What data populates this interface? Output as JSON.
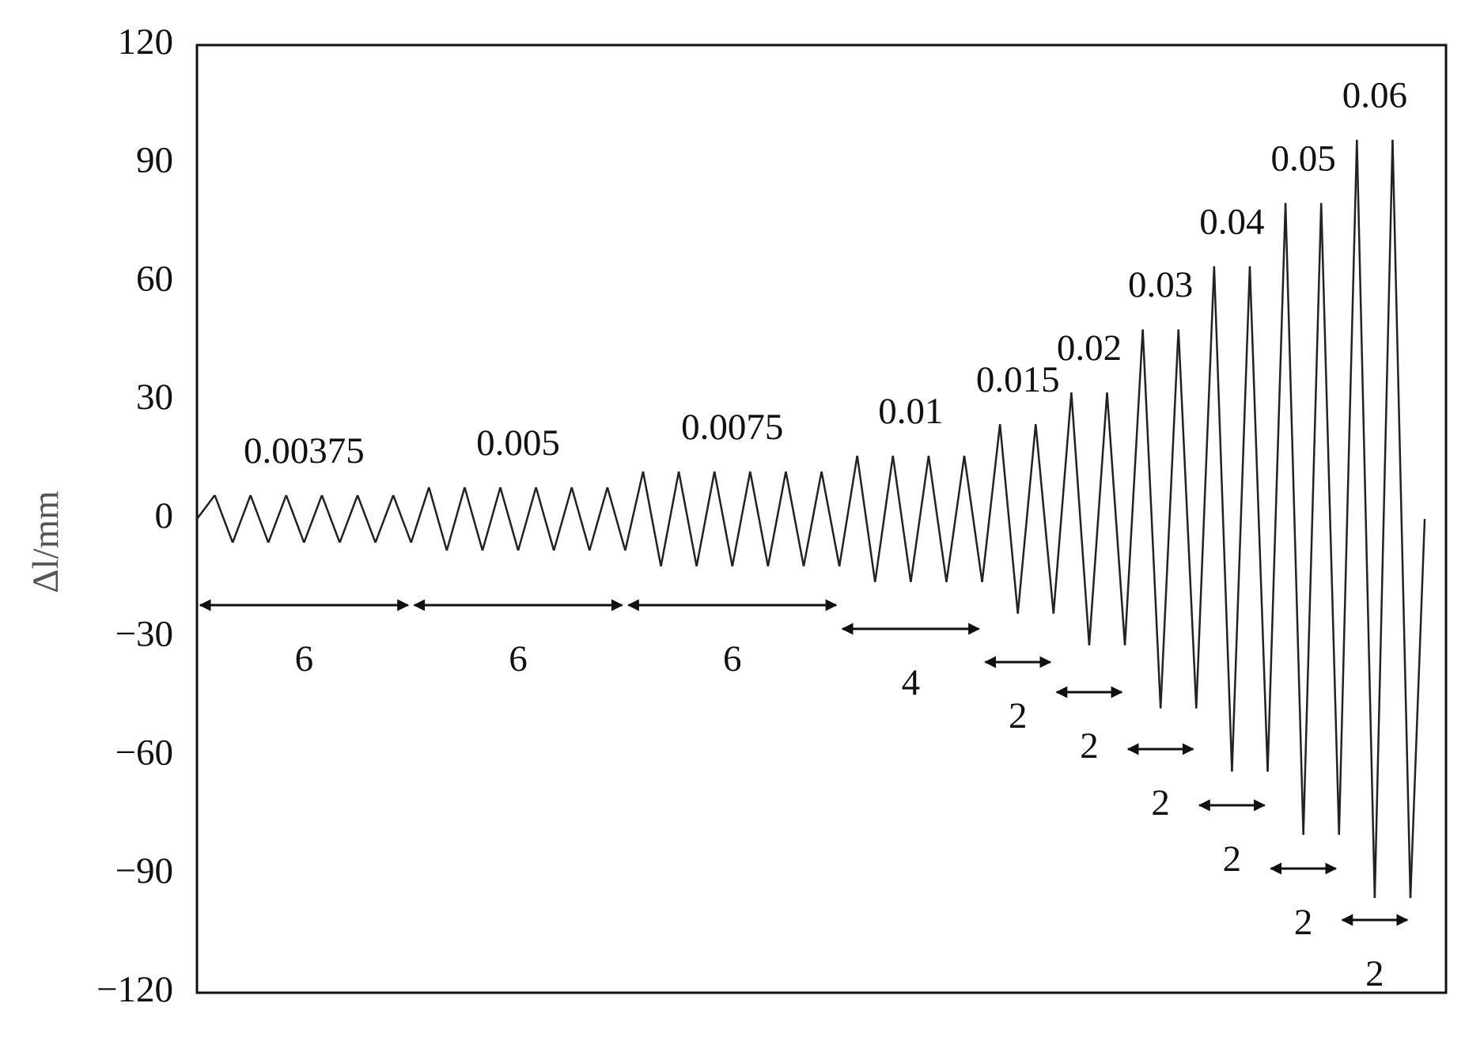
{
  "chart_data": {
    "type": "loading-protocol",
    "y_label": "Δl/mm",
    "ylim": [
      -120,
      120
    ],
    "yticks": [
      {
        "value": -120,
        "label": "−120"
      },
      {
        "value": -90,
        "label": "−90"
      },
      {
        "value": -60,
        "label": "−60"
      },
      {
        "value": -30,
        "label": "−30"
      },
      0,
      30,
      60,
      90,
      120
    ],
    "color": "#222222",
    "stages": [
      {
        "drift_ratio": 0.00375,
        "cycles": 6,
        "amplitude": 6
      },
      {
        "drift_ratio": 0.005,
        "cycles": 6,
        "amplitude": 8
      },
      {
        "drift_ratio": 0.0075,
        "cycles": 6,
        "amplitude": 12
      },
      {
        "drift_ratio": 0.01,
        "cycles": 4,
        "amplitude": 16
      },
      {
        "drift_ratio": 0.015,
        "cycles": 2,
        "amplitude": 24
      },
      {
        "drift_ratio": 0.02,
        "cycles": 2,
        "amplitude": 32
      },
      {
        "drift_ratio": 0.03,
        "cycles": 2,
        "amplitude": 48
      },
      {
        "drift_ratio": 0.04,
        "cycles": 2,
        "amplitude": 64
      },
      {
        "drift_ratio": 0.05,
        "cycles": 2,
        "amplitude": 80
      },
      {
        "drift_ratio": 0.06,
        "cycles": 2,
        "amplitude": 96
      }
    ]
  }
}
